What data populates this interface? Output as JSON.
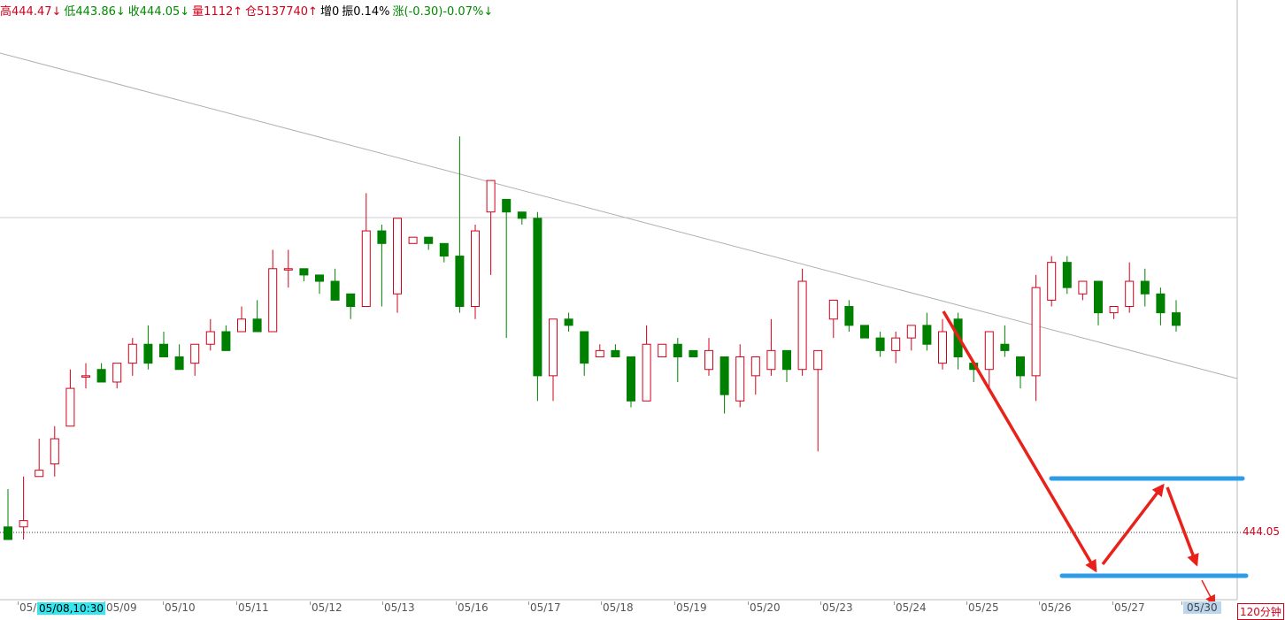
{
  "header": {
    "high": "高444.47↓",
    "low": "低443.86↓",
    "close": "收444.05↓",
    "volume": "量1112↑",
    "open_interest": "仓5137740↑",
    "oi_change": "增0",
    "amplitude": "振0.14%",
    "change": "涨(-0.30)-0.07%↓"
  },
  "price_label": "444.05",
  "period_label": "120分钟",
  "cursor_date": "05/08,10:30",
  "colors": {
    "up": "#d0021b",
    "down": "#008000",
    "bg": "#ffffff",
    "box": "#2e9be6",
    "arrow": "#e8221b"
  },
  "chart_data": {
    "type": "candlestick",
    "x_ticks": [
      "05/",
      "05/09",
      "05/10",
      "05/11",
      "05/12",
      "05/13",
      "05/16",
      "05/17",
      "05/18",
      "05/19",
      "05/20",
      "05/23",
      "05/24",
      "05/25",
      "05/26",
      "05/27",
      "05/30"
    ],
    "last_price": 444.05,
    "candles_ohlc_relative": [
      [
        0.2,
        0.18,
        0.26,
        0.18
      ],
      [
        0.2,
        0.21,
        0.18,
        0.28
      ],
      [
        0.28,
        0.29,
        0.28,
        0.34
      ],
      [
        0.3,
        0.34,
        0.28,
        0.36
      ],
      [
        0.36,
        0.42,
        0.36,
        0.45
      ],
      [
        0.44,
        0.44,
        0.42,
        0.46
      ],
      [
        0.45,
        0.43,
        0.43,
        0.46
      ],
      [
        0.43,
        0.46,
        0.42,
        0.46
      ],
      [
        0.46,
        0.49,
        0.44,
        0.5
      ],
      [
        0.49,
        0.46,
        0.45,
        0.52
      ],
      [
        0.49,
        0.47,
        0.47,
        0.51
      ],
      [
        0.47,
        0.45,
        0.45,
        0.49
      ],
      [
        0.46,
        0.49,
        0.44,
        0.49
      ],
      [
        0.49,
        0.51,
        0.48,
        0.53
      ],
      [
        0.51,
        0.48,
        0.48,
        0.52
      ],
      [
        0.51,
        0.53,
        0.51,
        0.55
      ],
      [
        0.53,
        0.51,
        0.51,
        0.56
      ],
      [
        0.51,
        0.61,
        0.51,
        0.64
      ],
      [
        0.61,
        0.61,
        0.58,
        0.64
      ],
      [
        0.61,
        0.6,
        0.59,
        0.61
      ],
      [
        0.6,
        0.59,
        0.57,
        0.6
      ],
      [
        0.59,
        0.56,
        0.56,
        0.61
      ],
      [
        0.57,
        0.55,
        0.53,
        0.57
      ],
      [
        0.55,
        0.67,
        0.55,
        0.73
      ],
      [
        0.67,
        0.65,
        0.55,
        0.68
      ],
      [
        0.57,
        0.69,
        0.54,
        0.69
      ],
      [
        0.65,
        0.66,
        0.65,
        0.66
      ],
      [
        0.66,
        0.65,
        0.64,
        0.66
      ],
      [
        0.65,
        0.63,
        0.62,
        0.65
      ],
      [
        0.63,
        0.55,
        0.54,
        0.82
      ],
      [
        0.55,
        0.67,
        0.53,
        0.68
      ],
      [
        0.7,
        0.75,
        0.6,
        0.75
      ],
      [
        0.72,
        0.7,
        0.5,
        0.72
      ],
      [
        0.7,
        0.69,
        0.68,
        0.7
      ],
      [
        0.69,
        0.44,
        0.4,
        0.7
      ],
      [
        0.44,
        0.53,
        0.4,
        0.53
      ],
      [
        0.53,
        0.52,
        0.51,
        0.54
      ],
      [
        0.51,
        0.46,
        0.44,
        0.51
      ],
      [
        0.47,
        0.48,
        0.47,
        0.49
      ],
      [
        0.48,
        0.47,
        0.47,
        0.49
      ],
      [
        0.47,
        0.4,
        0.39,
        0.47
      ],
      [
        0.4,
        0.49,
        0.4,
        0.52
      ],
      [
        0.47,
        0.49,
        0.47,
        0.49
      ],
      [
        0.49,
        0.47,
        0.43,
        0.5
      ],
      [
        0.48,
        0.47,
        0.47,
        0.48
      ],
      [
        0.45,
        0.48,
        0.44,
        0.5
      ],
      [
        0.47,
        0.41,
        0.38,
        0.47
      ],
      [
        0.4,
        0.47,
        0.39,
        0.49
      ],
      [
        0.44,
        0.47,
        0.41,
        0.47
      ],
      [
        0.45,
        0.48,
        0.44,
        0.53
      ],
      [
        0.48,
        0.45,
        0.43,
        0.48
      ],
      [
        0.45,
        0.59,
        0.44,
        0.61
      ],
      [
        0.45,
        0.48,
        0.32,
        0.48
      ],
      [
        0.53,
        0.56,
        0.5,
        0.56
      ],
      [
        0.55,
        0.52,
        0.51,
        0.56
      ],
      [
        0.52,
        0.5,
        0.5,
        0.52
      ],
      [
        0.5,
        0.48,
        0.47,
        0.51
      ],
      [
        0.48,
        0.5,
        0.46,
        0.51
      ],
      [
        0.5,
        0.52,
        0.48,
        0.52
      ],
      [
        0.52,
        0.49,
        0.48,
        0.54
      ],
      [
        0.46,
        0.51,
        0.45,
        0.53
      ],
      [
        0.53,
        0.47,
        0.45,
        0.54
      ],
      [
        0.46,
        0.45,
        0.43,
        0.46
      ],
      [
        0.45,
        0.51,
        0.42,
        0.51
      ],
      [
        0.49,
        0.48,
        0.47,
        0.52
      ],
      [
        0.47,
        0.44,
        0.42,
        0.47
      ],
      [
        0.44,
        0.58,
        0.4,
        0.6
      ],
      [
        0.56,
        0.62,
        0.55,
        0.63
      ],
      [
        0.62,
        0.58,
        0.57,
        0.63
      ],
      [
        0.57,
        0.59,
        0.56,
        0.59
      ],
      [
        0.59,
        0.54,
        0.52,
        0.59
      ],
      [
        0.54,
        0.55,
        0.53,
        0.55
      ],
      [
        0.55,
        0.59,
        0.54,
        0.62
      ],
      [
        0.59,
        0.57,
        0.55,
        0.61
      ],
      [
        0.57,
        0.54,
        0.52,
        0.58
      ],
      [
        0.54,
        0.52,
        0.51,
        0.56
      ]
    ]
  }
}
